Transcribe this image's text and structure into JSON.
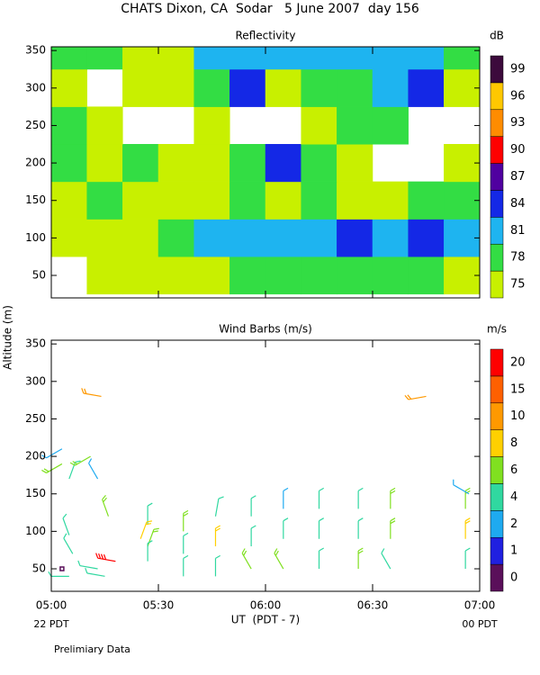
{
  "title": "CHATS Dixon, CA  Sodar   5 June 2007  day 156",
  "note": "Prelimiary Data",
  "chart_data": [
    {
      "type": "heatmap",
      "title": "Reflectivity",
      "colorbar_label": "dB",
      "x": [
        305,
        315,
        325,
        335,
        345,
        355,
        365,
        375,
        385,
        395,
        405,
        415
      ],
      "y": [
        50,
        100,
        150,
        200,
        250,
        300,
        350
      ],
      "z": [
        [
          73,
          76,
          76,
          76,
          77,
          79,
          79,
          79,
          79,
          79,
          79,
          77
        ],
        [
          76,
          76,
          77,
          79,
          82,
          82,
          83,
          83,
          85,
          83,
          85,
          82
        ],
        [
          76,
          79,
          76,
          77,
          76,
          79,
          77,
          79,
          76,
          77,
          79,
          79
        ],
        [
          80,
          76,
          79,
          77,
          76,
          79,
          85,
          79,
          76,
          73,
          73,
          76
        ],
        [
          79,
          77,
          73,
          73,
          76,
          73,
          73,
          76,
          80,
          79,
          73,
          73
        ],
        [
          77,
          73,
          76,
          76,
          80,
          86,
          76,
          80,
          80,
          82,
          85,
          76
        ],
        [
          79,
          79,
          76,
          76,
          82,
          82,
          82,
          82,
          82,
          82,
          82,
          79
        ]
      ],
      "levels": [
        75,
        78,
        81,
        84,
        87,
        90,
        93,
        96,
        99
      ],
      "colors": [
        "#c8f000",
        "#33dd44",
        "#1eb4f0",
        "#1428e6",
        "#5000a0",
        "#ff0000",
        "#ff8c00",
        "#ffc800",
        "#3c0a3c"
      ],
      "xlim": [
        300,
        420
      ],
      "ylim": [
        20,
        355
      ],
      "yticks": [
        50,
        100,
        150,
        200,
        250,
        300,
        350
      ]
    },
    {
      "type": "barbs",
      "title": "Wind Barbs (m/s)",
      "colorbar_label": "m/s",
      "xlabel": "UT  (PDT - 7)",
      "ylabel": "Altitude (m)",
      "x_annotations": [
        "22 PDT",
        "00 PDT"
      ],
      "x": [
        303,
        303,
        305,
        305,
        306,
        303,
        305,
        314,
        311,
        313,
        313,
        315,
        316,
        318,
        327,
        327,
        327,
        325,
        337,
        337,
        337,
        346,
        346,
        346,
        356,
        356,
        356,
        365,
        365,
        365,
        375,
        375,
        375,
        386,
        386,
        386,
        395,
        395,
        395,
        405,
        416,
        416,
        416,
        417
      ],
      "y": [
        210,
        190,
        170,
        95,
        70,
        50,
        40,
        280,
        200,
        170,
        50,
        40,
        120,
        60,
        110,
        80,
        60,
        90,
        100,
        70,
        40,
        120,
        80,
        40,
        120,
        80,
        50,
        130,
        90,
        50,
        130,
        90,
        50,
        130,
        90,
        50,
        130,
        90,
        50,
        280,
        130,
        90,
        50,
        150
      ],
      "speed": [
        3,
        6,
        5,
        5,
        4,
        0,
        4,
        10,
        6,
        3,
        4,
        4,
        7,
        20,
        4,
        6,
        5,
        9,
        6,
        5,
        5,
        5,
        8,
        5,
        5,
        5,
        6,
        3,
        5,
        6,
        5,
        5,
        5,
        5,
        5,
        6,
        6,
        6,
        5,
        10,
        7,
        8,
        5,
        3
      ],
      "direction": [
        240,
        240,
        20,
        340,
        330,
        0,
        270,
        280,
        240,
        330,
        280,
        280,
        340,
        280,
        0,
        20,
        0,
        20,
        0,
        0,
        0,
        10,
        0,
        0,
        0,
        0,
        330,
        0,
        0,
        330,
        0,
        0,
        0,
        0,
        0,
        0,
        0,
        0,
        330,
        260,
        0,
        0,
        0,
        300
      ],
      "levels": [
        0,
        1,
        2,
        4,
        6,
        8,
        10,
        15,
        20
      ],
      "colors": [
        "#5a0f5a",
        "#2020e0",
        "#1eaaf0",
        "#30d8a0",
        "#80e020",
        "#ffd000",
        "#ff9900",
        "#ff6000",
        "#ff0000"
      ],
      "xlim": [
        300,
        420
      ],
      "ylim": [
        20,
        355
      ],
      "xticks": [
        {
          "value": 300,
          "label": "05:00"
        },
        {
          "value": 330,
          "label": "05:30"
        },
        {
          "value": 360,
          "label": "06:00"
        },
        {
          "value": 390,
          "label": "06:30"
        },
        {
          "value": 420,
          "label": "07:00"
        }
      ],
      "yticks": [
        50,
        100,
        150,
        200,
        250,
        300,
        350
      ]
    }
  ]
}
